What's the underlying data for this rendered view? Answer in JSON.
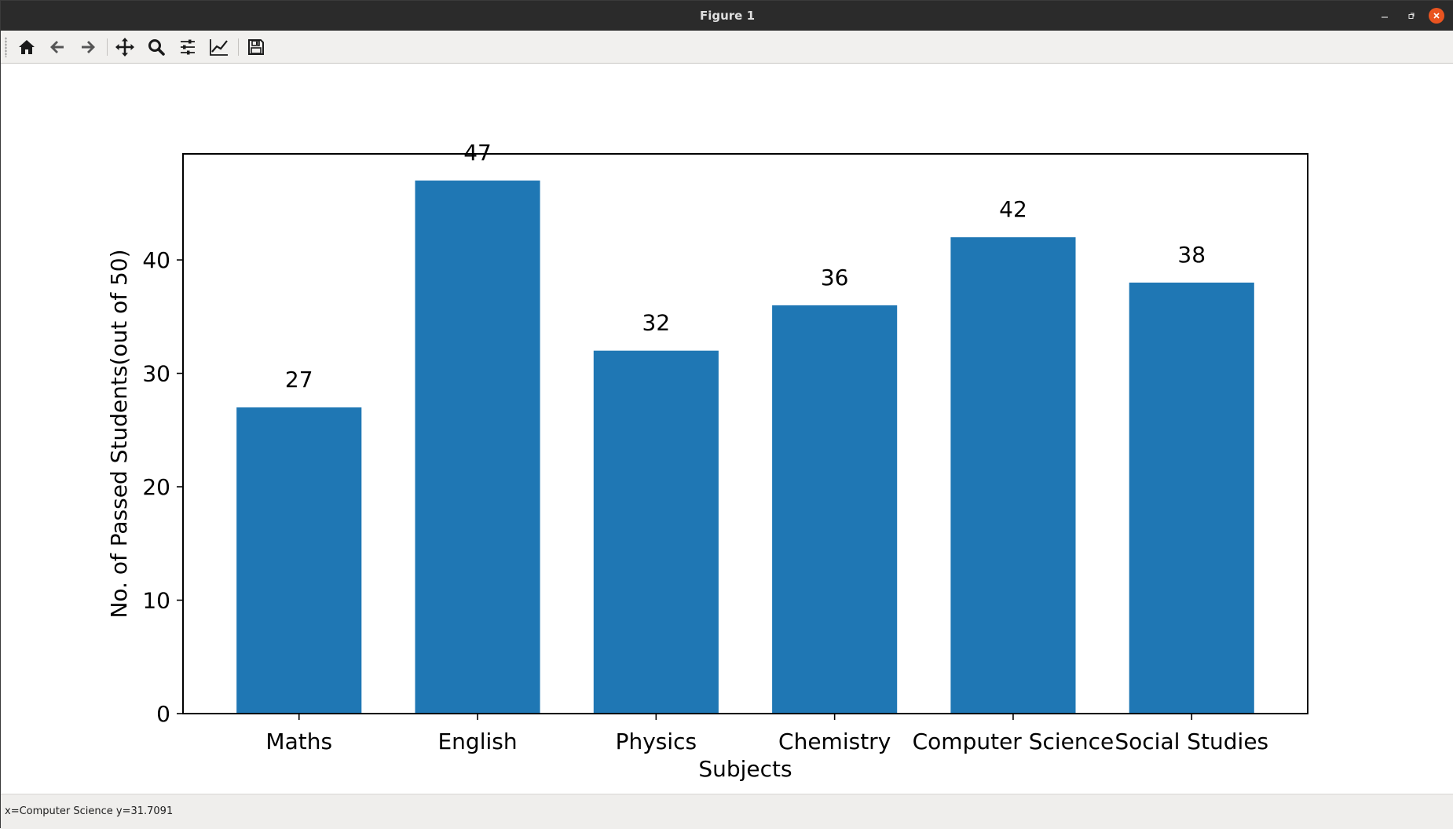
{
  "window": {
    "title": "Figure 1"
  },
  "toolbar": {
    "buttons": [
      {
        "icon": "home-icon"
      },
      {
        "icon": "back-arrow-icon"
      },
      {
        "icon": "forward-arrow-icon"
      },
      {
        "icon": "pan-icon"
      },
      {
        "icon": "zoom-icon"
      },
      {
        "icon": "configure-subplots-icon"
      },
      {
        "icon": "edit-axis-icon"
      },
      {
        "icon": "save-icon"
      }
    ]
  },
  "status": {
    "text": "x=Computer Science y=31.7091"
  },
  "colors": {
    "bar": "#1f77b4",
    "titlebar": "#2b2b2b",
    "close_button": "#e95420"
  },
  "chart_data": {
    "type": "bar",
    "title": "",
    "xlabel": "Subjects",
    "ylabel": "No. of Passed Students(out of 50)",
    "categories": [
      "Maths",
      "English",
      "Physics",
      "Chemistry",
      "Computer Science",
      "Social Studies"
    ],
    "values": [
      27,
      47,
      32,
      36,
      42,
      38
    ],
    "data_labels": [
      "27",
      "47",
      "32",
      "36",
      "42",
      "38"
    ],
    "yticks": [
      0,
      10,
      20,
      30,
      40
    ],
    "ytick_labels": [
      "0",
      "10",
      "20",
      "30",
      "40"
    ],
    "ylim": [
      0,
      49.35
    ],
    "grid": false,
    "legend": "none"
  }
}
